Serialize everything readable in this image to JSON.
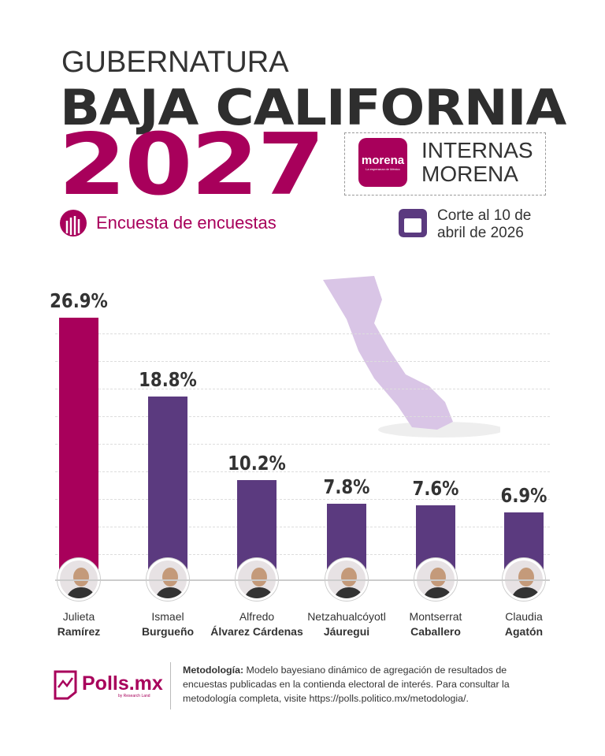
{
  "header": {
    "line1": "GUBERNATURA",
    "line2": "BAJA CALIFORNIA",
    "year": "2027",
    "party_logo": "morena",
    "party_logo_tagline": "La esperanza de México",
    "badge_line1": "INTERNAS",
    "badge_line2": "MORENA",
    "subtitle": "Encuesta de encuestas",
    "cutoff_line1": "Corte al 10 de",
    "cutoff_line2": "abril de 2026"
  },
  "colors": {
    "magenta": "#a8005b",
    "purple": "#5b3a7f",
    "map": "#d9c5e6"
  },
  "chart_data": {
    "type": "bar",
    "title": "",
    "xlabel": "",
    "ylabel": "",
    "grid": true,
    "categories": [
      "Julieta Ramírez",
      "Ismael Burgueño",
      "Alfredo Álvarez Cárdenas",
      "Netzahualcóyotl Jáuregui",
      "Montserrat Caballero",
      "Claudia Agatón"
    ],
    "values": [
      26.9,
      18.8,
      10.2,
      7.8,
      7.6,
      6.9
    ],
    "labels": [
      "26.9%",
      "18.8%",
      "10.2%",
      "7.8%",
      "7.6%",
      "6.9%"
    ],
    "first_names": [
      "Julieta",
      "Ismael",
      "Alfredo",
      "Netzahualcóyotl",
      "Montserrat",
      "Claudia"
    ],
    "last_names": [
      "Ramírez",
      "Burgueño",
      "Álvarez Cárdenas",
      "Jáuregui",
      "Caballero",
      "Agatón"
    ],
    "bar_colors": [
      "#a8005b",
      "#5b3a7f",
      "#5b3a7f",
      "#5b3a7f",
      "#5b3a7f",
      "#5b3a7f"
    ]
  },
  "footer": {
    "brand": "Polls.mx",
    "brand_sub": "by Research Land",
    "method_label": "Metodología:",
    "method_text": " Modelo bayesiano dinámico de agregación de resultados de encuestas publicadas en la contienda electoral de interés. Para consultar la metodología completa, visite https://polls.politico.mx/metodologia/."
  }
}
